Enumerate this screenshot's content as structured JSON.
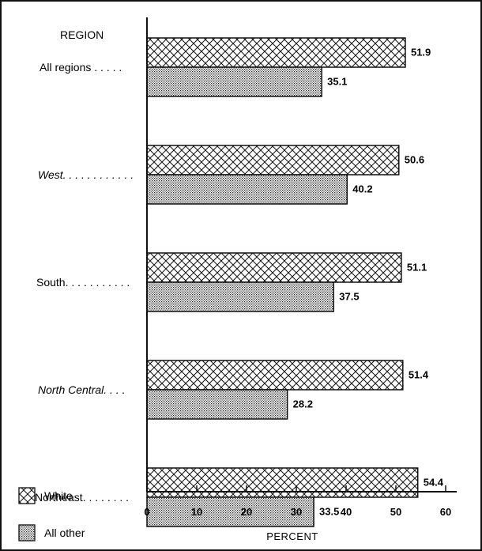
{
  "chart_data": {
    "type": "bar",
    "orientation": "horizontal",
    "category_axis_title": "REGION",
    "xlabel": "PERCENT",
    "xlim": [
      0,
      60
    ],
    "xticks": [
      0,
      10,
      20,
      30,
      40,
      50,
      60
    ],
    "categories": [
      "All regions . . . . .",
      "West. . . . . . . . . . . .",
      "South. . . . . . . . . . .",
      "North Central. . . .",
      "Northeast. . . . . . . ."
    ],
    "italic_categories": [
      1,
      3
    ],
    "series": [
      {
        "name": "White",
        "pattern": "crosshatch",
        "values": [
          51.9,
          50.6,
          51.1,
          51.4,
          54.4
        ]
      },
      {
        "name": "All other",
        "pattern": "dotted",
        "values": [
          35.1,
          40.2,
          37.5,
          28.2,
          33.5
        ]
      }
    ],
    "legend_position": "bottom-left",
    "grid": false
  }
}
